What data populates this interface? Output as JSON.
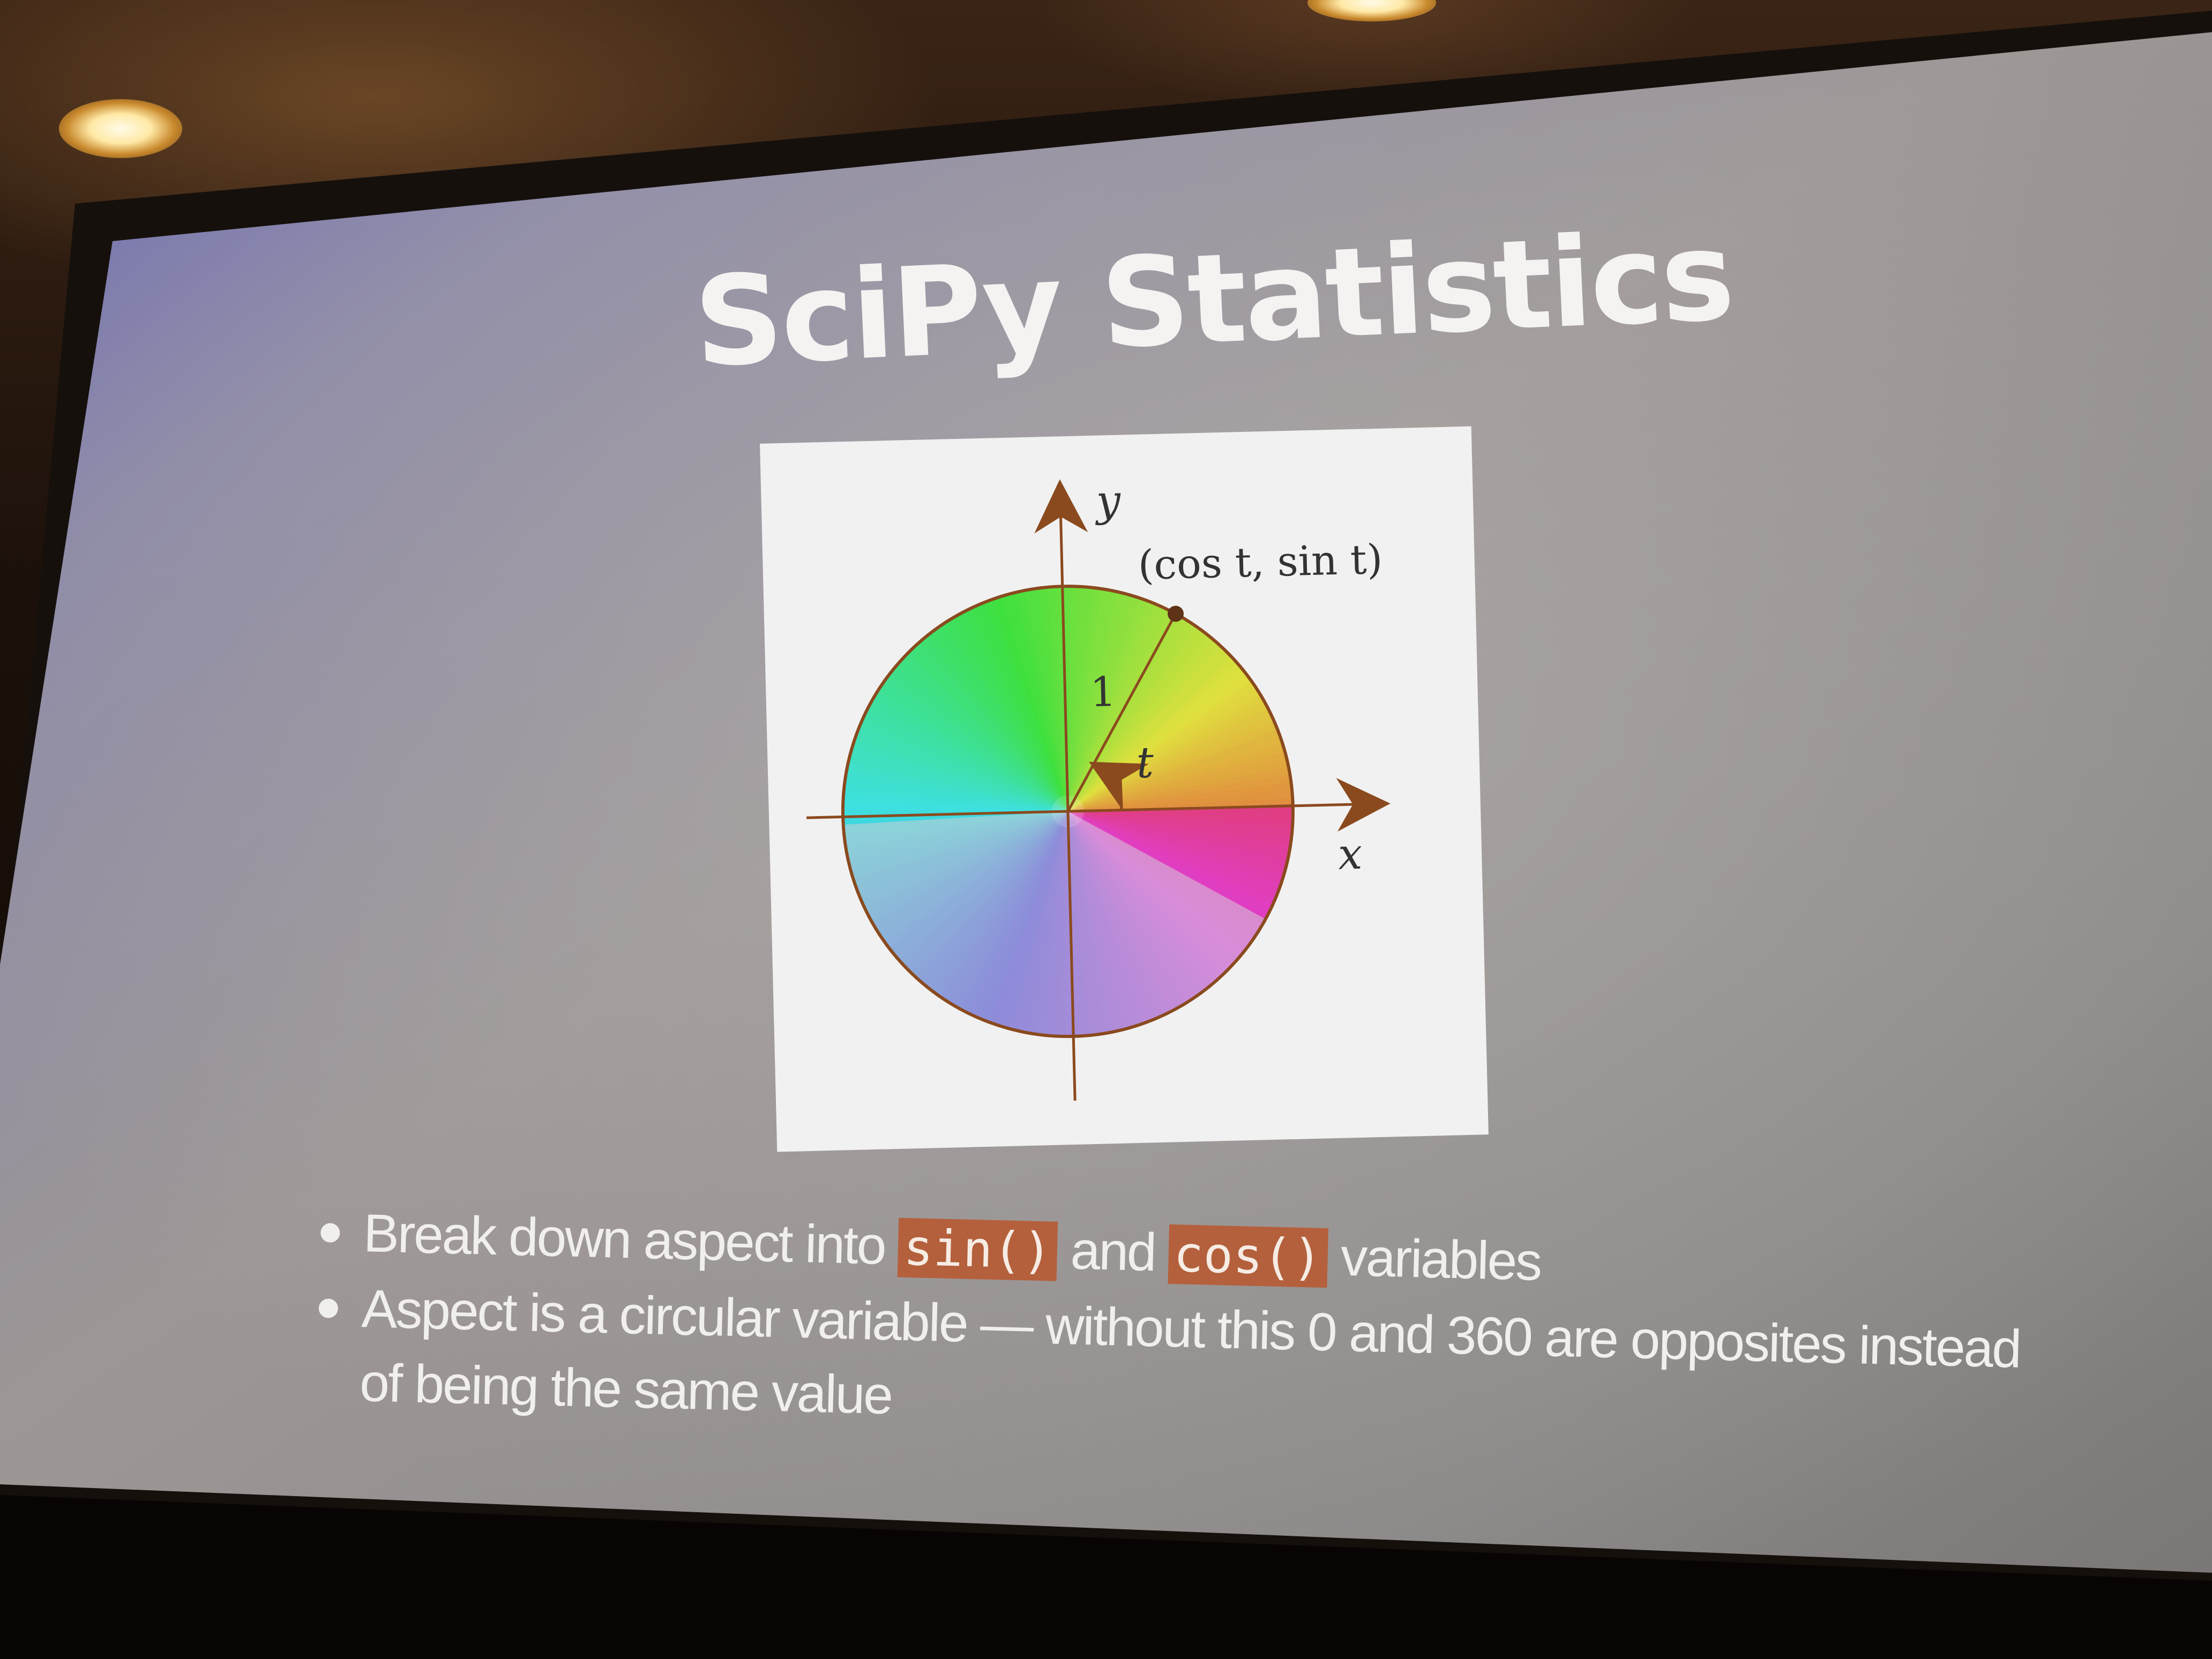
{
  "slide": {
    "title": "SciPy Statistics",
    "figure": {
      "y_axis_label": "y",
      "x_axis_label": "x",
      "point_label": "(cos t, sin t)",
      "radius_label": "1",
      "angle_label": "t",
      "angle_degrees": 60
    },
    "bullets": [
      {
        "before": "Break down aspect into ",
        "code1": "sin()",
        "middle": " and ",
        "code2": "cos()",
        "after": " variables"
      },
      {
        "text": "Aspect is a circular variable — without this 0 and 360 are opposites instead of being the same value"
      }
    ]
  },
  "colors": {
    "code_highlight": "#b4603c",
    "axis": "#8a4a1e",
    "slide_text": "#f4f3f2"
  }
}
